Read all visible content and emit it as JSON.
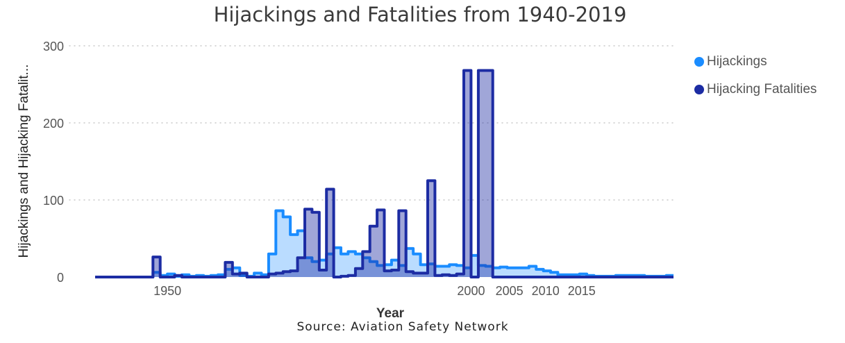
{
  "colors": {
    "hijackings": "#1A8CFF",
    "fatalities": "#1C2CA3",
    "grid": "#c8c8c8",
    "text": "#555555"
  },
  "source": "Source: Aviation Safety Network",
  "chart_data": {
    "type": "area",
    "title": "Hijackings and Fatalities from 1940-2019",
    "xlabel": "Year",
    "ylabel": "Hijackings and Hijacking Fatalit...",
    "ylim": [
      0,
      300
    ],
    "xlim": [
      1940,
      2019
    ],
    "x_axis_note": "categorical year axis; tick labels shown only from 2000 onward plus 1950",
    "yticks": [
      0,
      100,
      200,
      300
    ],
    "xtick_labels": [
      "1950",
      "2000",
      "2005",
      "2010",
      "2015"
    ],
    "grid": true,
    "legend_position": "top-right",
    "series": [
      {
        "name": "Hijackings",
        "color": "#1A8CFF",
        "points": [
          [
            1940,
            0
          ],
          [
            1947,
            0
          ],
          [
            1948,
            6
          ],
          [
            1949,
            2
          ],
          [
            1950,
            4
          ],
          [
            1951,
            1
          ],
          [
            1952,
            3
          ],
          [
            1953,
            1
          ],
          [
            1954,
            2
          ],
          [
            1955,
            1
          ],
          [
            1956,
            2
          ],
          [
            1957,
            3
          ],
          [
            1958,
            10
          ],
          [
            1959,
            12
          ],
          [
            1960,
            2
          ],
          [
            1961,
            1
          ],
          [
            1962,
            5
          ],
          [
            1963,
            3
          ],
          [
            1964,
            30
          ],
          [
            1965,
            86
          ],
          [
            1966,
            78
          ],
          [
            1967,
            55
          ],
          [
            1968,
            60
          ],
          [
            1969,
            25
          ],
          [
            1970,
            20
          ],
          [
            1971,
            22
          ],
          [
            1972,
            30
          ],
          [
            1973,
            38
          ],
          [
            1974,
            30
          ],
          [
            1975,
            33
          ],
          [
            1976,
            30
          ],
          [
            1977,
            25
          ],
          [
            1978,
            20
          ],
          [
            1979,
            15
          ],
          [
            1980,
            16
          ],
          [
            1981,
            22
          ],
          [
            1982,
            15
          ],
          [
            1983,
            37
          ],
          [
            1984,
            30
          ],
          [
            1985,
            16
          ],
          [
            1986,
            17
          ],
          [
            1987,
            14
          ],
          [
            1988,
            14
          ],
          [
            1989,
            16
          ],
          [
            1990,
            15
          ],
          [
            1991,
            12
          ],
          [
            1992,
            28
          ],
          [
            1993,
            15
          ],
          [
            1994,
            14
          ],
          [
            1995,
            12
          ],
          [
            1996,
            13
          ],
          [
            1997,
            12
          ],
          [
            1998,
            12
          ],
          [
            1999,
            12
          ],
          [
            2000,
            14
          ],
          [
            2001,
            10
          ],
          [
            2002,
            8
          ],
          [
            2003,
            6
          ],
          [
            2004,
            3
          ],
          [
            2005,
            3
          ],
          [
            2006,
            3
          ],
          [
            2007,
            4
          ],
          [
            2008,
            2
          ],
          [
            2009,
            1
          ],
          [
            2010,
            1
          ],
          [
            2011,
            1
          ],
          [
            2012,
            2
          ],
          [
            2013,
            2
          ],
          [
            2014,
            2
          ],
          [
            2015,
            2
          ],
          [
            2016,
            1
          ],
          [
            2017,
            1
          ],
          [
            2018,
            1
          ],
          [
            2019,
            2
          ]
        ]
      },
      {
        "name": "Hijacking Fatalities",
        "color": "#1C2CA3",
        "points": [
          [
            1940,
            0
          ],
          [
            1947,
            0
          ],
          [
            1948,
            26
          ],
          [
            1949,
            0
          ],
          [
            1950,
            0
          ],
          [
            1951,
            2
          ],
          [
            1952,
            0
          ],
          [
            1953,
            0
          ],
          [
            1954,
            0
          ],
          [
            1955,
            0
          ],
          [
            1956,
            0
          ],
          [
            1957,
            0
          ],
          [
            1958,
            19
          ],
          [
            1959,
            4
          ],
          [
            1960,
            5
          ],
          [
            1961,
            0
          ],
          [
            1962,
            0
          ],
          [
            1963,
            0
          ],
          [
            1964,
            4
          ],
          [
            1965,
            5
          ],
          [
            1966,
            7
          ],
          [
            1967,
            8
          ],
          [
            1968,
            25
          ],
          [
            1969,
            88
          ],
          [
            1970,
            84
          ],
          [
            1971,
            9
          ],
          [
            1972,
            114
          ],
          [
            1973,
            0
          ],
          [
            1974,
            1
          ],
          [
            1975,
            2
          ],
          [
            1976,
            11
          ],
          [
            1977,
            33
          ],
          [
            1978,
            66
          ],
          [
            1979,
            87
          ],
          [
            1980,
            8
          ],
          [
            1981,
            9
          ],
          [
            1982,
            86
          ],
          [
            1983,
            7
          ],
          [
            1984,
            5
          ],
          [
            1985,
            5
          ],
          [
            1986,
            125
          ],
          [
            1987,
            2
          ],
          [
            1988,
            3
          ],
          [
            1989,
            2
          ],
          [
            1990,
            4
          ],
          [
            1991,
            268
          ],
          [
            1992,
            0
          ],
          [
            1993,
            268
          ],
          [
            1994,
            268
          ],
          [
            1995,
            0
          ],
          [
            1996,
            0
          ],
          [
            1997,
            0
          ],
          [
            1998,
            0
          ],
          [
            1999,
            0
          ],
          [
            2000,
            0
          ],
          [
            2001,
            0
          ],
          [
            2002,
            0
          ],
          [
            2003,
            0
          ],
          [
            2004,
            0
          ],
          [
            2005,
            0
          ],
          [
            2006,
            0
          ],
          [
            2007,
            0
          ],
          [
            2008,
            0
          ],
          [
            2009,
            0
          ],
          [
            2010,
            0
          ],
          [
            2011,
            0
          ],
          [
            2012,
            0
          ],
          [
            2013,
            0
          ],
          [
            2014,
            0
          ],
          [
            2015,
            0
          ],
          [
            2016,
            0
          ],
          [
            2017,
            0
          ],
          [
            2018,
            0
          ],
          [
            2019,
            0
          ]
        ]
      }
    ]
  }
}
